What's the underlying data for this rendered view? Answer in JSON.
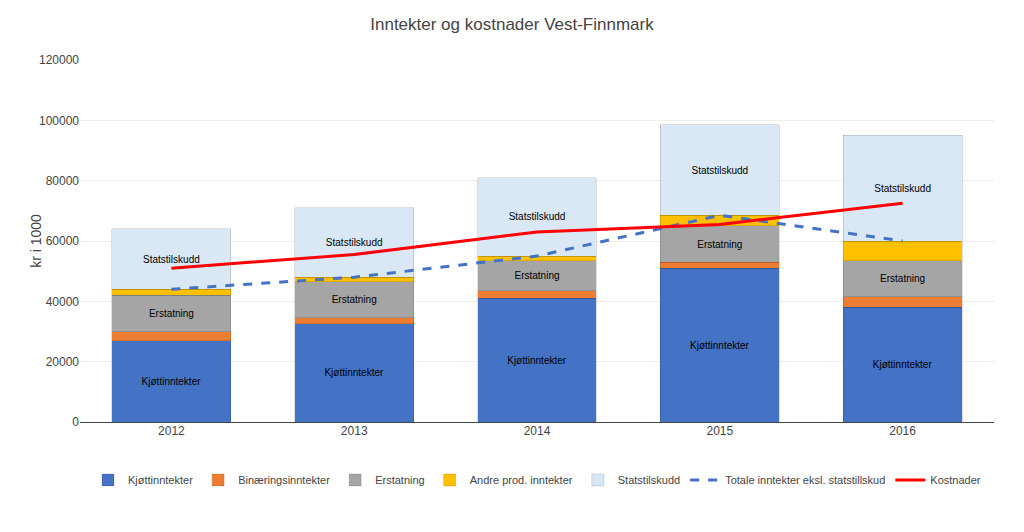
{
  "chart_data": {
    "type": "bar",
    "title": "Inntekter og kostnader Vest-Finnmark",
    "ylabel": "kr i 1000",
    "categories": [
      "2012",
      "2013",
      "2014",
      "2015",
      "2016"
    ],
    "stacked": true,
    "ylim": [
      0,
      120000
    ],
    "yticks": [
      0,
      20000,
      40000,
      60000,
      80000,
      100000,
      120000
    ],
    "grid": true,
    "legend": "bottom",
    "series": [
      {
        "name": "Kjøttinntekter",
        "type": "bar",
        "color": "#4472C4",
        "values": [
          27000,
          32500,
          41000,
          51000,
          38000
        ]
      },
      {
        "name": "Binæringsinntekter",
        "type": "bar",
        "color": "#ED7D31",
        "values": [
          3000,
          2000,
          2500,
          2000,
          3500
        ]
      },
      {
        "name": "Erstatning",
        "type": "bar",
        "color": "#A5A5A5",
        "values": [
          12000,
          12000,
          10000,
          12000,
          12000
        ]
      },
      {
        "name": "Andre prod. inntekter",
        "type": "bar",
        "color": "#FFC000",
        "values": [
          2000,
          1500,
          1500,
          3500,
          6500
        ]
      },
      {
        "name": "Statstilskudd",
        "type": "bar",
        "color": "#DAE8F5",
        "values": [
          20000,
          23000,
          26000,
          30000,
          35000
        ]
      },
      {
        "name": "Totale inntekter eksl. statstillskud",
        "type": "line",
        "color": "#4472C4",
        "line_style": "dashed",
        "values": [
          44000,
          48000,
          55000,
          68500,
          60000
        ]
      },
      {
        "name": "Kostnader",
        "type": "line",
        "color": "#FF0000",
        "line_style": "solid",
        "values": [
          51000,
          55500,
          63000,
          65500,
          72500
        ]
      }
    ],
    "annotations": [
      {
        "series": "Kjøttinntekter",
        "text": "Kjøttinntekter"
      },
      {
        "series": "Erstatning",
        "text": "Erstatning"
      },
      {
        "series": "Statstilskudd",
        "text": "Statstilskudd"
      }
    ]
  }
}
